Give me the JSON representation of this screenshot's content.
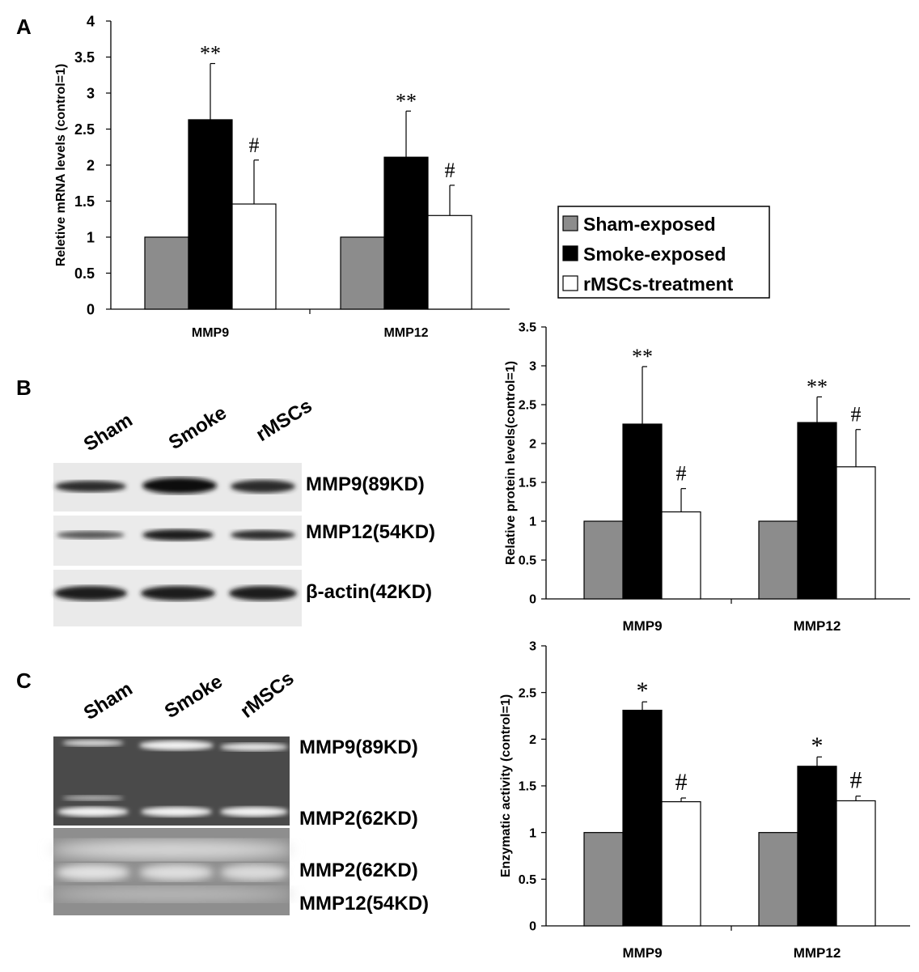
{
  "panels": {
    "a": "A",
    "b": "B",
    "c": "C"
  },
  "legend": {
    "items": [
      {
        "label": "Sham-exposed",
        "color": "#8c8c8c"
      },
      {
        "label": "Smoke-exposed",
        "color": "#000000"
      },
      {
        "label": "rMSCs-treatment",
        "color": "#ffffff"
      }
    ]
  },
  "blot_b": {
    "lanes": [
      "Sham",
      "Smoke",
      "rMSCs"
    ],
    "bands": [
      "MMP9(89KD)",
      "MMP12(54KD)",
      "β-actin(42KD)"
    ]
  },
  "blot_c": {
    "lanes": [
      "Sham",
      "Smoke",
      "rMSCs"
    ],
    "bands": [
      "MMP9(89KD)",
      "MMP2(62KD)",
      "MMP2(62KD)",
      "MMP12(54KD)"
    ]
  },
  "chart_data": [
    {
      "type": "bar",
      "panel": "A",
      "ylabel": "Reletive mRNA levels (control=1)",
      "ylim": [
        0,
        4
      ],
      "yticks": [
        "0",
        "0.5",
        "1",
        "1.5",
        "2",
        "2.5",
        "3",
        "3.5",
        "4"
      ],
      "categories": [
        "MMP9",
        "MMP12"
      ],
      "series": [
        {
          "name": "Sham-exposed",
          "values": [
            1.0,
            1.0
          ],
          "errors": [
            0,
            0
          ],
          "labels": [
            "",
            ""
          ]
        },
        {
          "name": "Smoke-exposed",
          "values": [
            2.63,
            2.11
          ],
          "errors": [
            0.78,
            0.64
          ],
          "labels": [
            "**",
            "**"
          ]
        },
        {
          "name": "rMSCs-treatment",
          "values": [
            1.46,
            1.3
          ],
          "errors": [
            0.61,
            0.42
          ],
          "labels": [
            "#",
            "#"
          ]
        }
      ]
    },
    {
      "type": "bar",
      "panel": "B",
      "ylabel": "Relative protein levels(control=1)",
      "ylim": [
        0,
        3.5
      ],
      "yticks": [
        "0",
        "0.5",
        "1",
        "1.5",
        "2",
        "2.5",
        "3",
        "3.5"
      ],
      "categories": [
        "MMP9",
        "MMP12"
      ],
      "series": [
        {
          "name": "Sham-exposed",
          "values": [
            1.0,
            1.0
          ],
          "errors": [
            0,
            0
          ],
          "labels": [
            "",
            ""
          ]
        },
        {
          "name": "Smoke-exposed",
          "values": [
            2.25,
            2.27
          ],
          "errors": [
            0.74,
            0.33
          ],
          "labels": [
            "**",
            "**"
          ]
        },
        {
          "name": "rMSCs-treatment",
          "values": [
            1.12,
            1.7
          ],
          "errors": [
            0.3,
            0.48
          ],
          "labels": [
            "#",
            "#"
          ]
        }
      ]
    },
    {
      "type": "bar",
      "panel": "C",
      "ylabel": "Enzymatic activity (control=1)",
      "ylim": [
        0,
        3
      ],
      "yticks": [
        "0",
        "0.5",
        "1",
        "1.5",
        "2",
        "2.5",
        "3"
      ],
      "categories": [
        "MMP9",
        "MMP12"
      ],
      "series": [
        {
          "name": "Sham-exposed",
          "values": [
            1.0,
            1.0
          ],
          "errors": [
            0,
            0
          ],
          "labels": [
            "",
            ""
          ]
        },
        {
          "name": "Smoke-exposed",
          "values": [
            2.31,
            1.71
          ],
          "errors": [
            0.09,
            0.1
          ],
          "labels": [
            "*",
            "*"
          ]
        },
        {
          "name": "rMSCs-treatment",
          "values": [
            1.33,
            1.34
          ],
          "errors": [
            0.04,
            0.05
          ],
          "labels": [
            "#",
            "#"
          ]
        }
      ]
    }
  ]
}
